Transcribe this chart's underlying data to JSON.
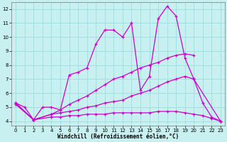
{
  "xlabel": "Windchill (Refroidissement éolien,°C)",
  "bg_color": "#c8f0f0",
  "line_color": "#cc00cc",
  "grid_color": "#99dddd",
  "xlim": [
    -0.5,
    23.5
  ],
  "ylim": [
    3.7,
    12.5
  ],
  "xticks": [
    0,
    1,
    2,
    3,
    4,
    5,
    6,
    7,
    8,
    9,
    10,
    11,
    12,
    13,
    14,
    15,
    16,
    17,
    18,
    19,
    20,
    21,
    22,
    23
  ],
  "yticks": [
    4,
    5,
    6,
    7,
    8,
    9,
    10,
    11,
    12
  ],
  "series": [
    {
      "x": [
        0,
        1,
        2,
        3,
        4,
        5,
        6,
        7,
        8,
        9,
        10,
        11,
        12,
        13,
        14,
        15,
        16,
        17,
        18,
        19,
        20
      ],
      "y": [
        5.3,
        5.0,
        4.1,
        5.0,
        5.0,
        4.8,
        7.3,
        7.5,
        7.8,
        9.5,
        10.5,
        10.5,
        10.0,
        11.0,
        6.2,
        7.2,
        11.3,
        12.2,
        11.5,
        8.5,
        7.0
      ]
    },
    {
      "x": [
        20,
        21,
        22,
        23
      ],
      "y": [
        7.0,
        5.3,
        4.3,
        4.0
      ]
    },
    {
      "x": [
        0,
        2,
        4,
        5,
        6,
        7,
        8,
        9,
        10,
        11,
        12,
        13,
        14,
        15,
        16,
        17,
        18,
        19,
        20
      ],
      "y": [
        5.3,
        4.1,
        4.5,
        4.8,
        5.2,
        5.5,
        5.8,
        6.2,
        6.6,
        7.0,
        7.2,
        7.5,
        7.8,
        8.0,
        8.2,
        8.5,
        8.7,
        8.8,
        8.7
      ]
    },
    {
      "x": [
        0,
        2,
        4,
        5,
        6,
        7,
        8,
        9,
        10,
        11,
        12,
        13,
        14,
        15,
        16,
        17,
        18,
        19,
        20,
        23
      ],
      "y": [
        5.3,
        4.1,
        4.5,
        4.6,
        4.7,
        4.8,
        5.0,
        5.1,
        5.3,
        5.4,
        5.5,
        5.8,
        6.0,
        6.2,
        6.5,
        6.8,
        7.0,
        7.2,
        7.0,
        4.0
      ]
    },
    {
      "x": [
        0,
        2,
        4,
        5,
        6,
        7,
        8,
        9,
        10,
        11,
        12,
        13,
        14,
        15,
        16,
        17,
        18,
        19,
        20,
        21,
        22,
        23
      ],
      "y": [
        5.2,
        4.1,
        4.3,
        4.3,
        4.4,
        4.4,
        4.5,
        4.5,
        4.5,
        4.6,
        4.6,
        4.6,
        4.6,
        4.6,
        4.7,
        4.7,
        4.7,
        4.6,
        4.5,
        4.4,
        4.2,
        4.0
      ]
    }
  ]
}
